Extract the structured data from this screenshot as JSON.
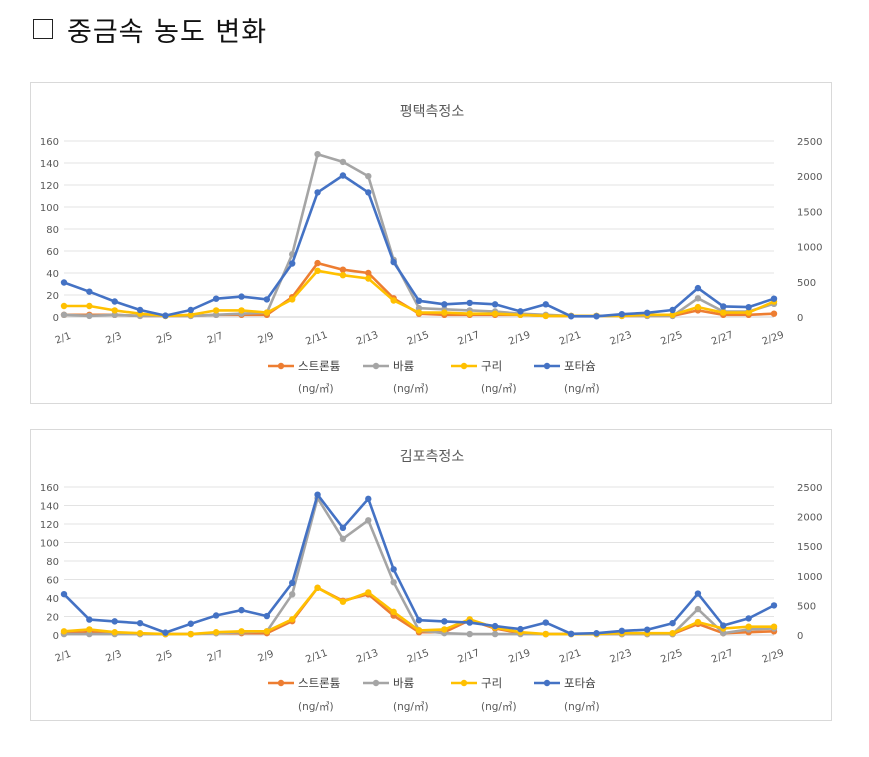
{
  "page": {
    "heading": "중금속 농도 변화"
  },
  "chart_data": [
    {
      "type": "line",
      "title": "평택측정소",
      "categories": [
        "2/1",
        "2/2",
        "2/3",
        "2/4",
        "2/5",
        "2/6",
        "2/7",
        "2/8",
        "2/9",
        "2/10",
        "2/11",
        "2/12",
        "2/13",
        "2/14",
        "2/15",
        "2/16",
        "2/17",
        "2/18",
        "2/19",
        "2/20",
        "2/21",
        "2/22",
        "2/23",
        "2/24",
        "2/25",
        "2/26",
        "2/27",
        "2/28",
        "2/29"
      ],
      "xticks": [
        "2/1",
        "2/3",
        "2/5",
        "2/7",
        "2/9",
        "2/11",
        "2/13",
        "2/15",
        "2/17",
        "2/19",
        "2/21",
        "2/23",
        "2/25",
        "2/27",
        "2/29"
      ],
      "y_left": {
        "range": [
          0,
          160
        ],
        "ticks": [
          "0",
          "20",
          "40",
          "60",
          "80",
          "100",
          "120",
          "140",
          "160"
        ]
      },
      "y_right": {
        "range": [
          0,
          2500
        ],
        "ticks": [
          "0",
          "500",
          "1000",
          "1500",
          "2000",
          "2500"
        ]
      },
      "grid": true,
      "legend_position": "bottom",
      "series": [
        {
          "name": "스트론튬",
          "unit": "(ng/㎥)",
          "axis": "left",
          "color": "#ED7D31",
          "values": [
            2,
            2,
            2,
            1,
            1,
            1,
            2,
            2,
            2,
            18,
            49,
            43,
            40,
            17,
            3,
            2,
            2,
            2,
            2,
            1,
            1,
            1,
            1,
            1,
            1,
            6,
            2,
            2,
            3
          ]
        },
        {
          "name": "바륨",
          "unit": "(ng/㎥)",
          "axis": "left",
          "color": "#A5A5A5",
          "values": [
            2,
            1,
            2,
            1,
            1,
            1,
            2,
            3,
            4,
            57,
            148,
            141,
            128,
            52,
            8,
            7,
            6,
            5,
            3,
            2,
            1,
            1,
            1,
            1,
            1,
            17,
            5,
            5,
            12
          ]
        },
        {
          "name": "구리",
          "unit": "(ng/㎥)",
          "axis": "left",
          "color": "#FFC000",
          "values": [
            10,
            10,
            6,
            3,
            1,
            2,
            6,
            6,
            4,
            16,
            42,
            38,
            35,
            15,
            4,
            4,
            3,
            3,
            2,
            1,
            1,
            1,
            1,
            2,
            2,
            9,
            4,
            4,
            14
          ]
        },
        {
          "name": "포타슘",
          "unit": "(ng/㎥)",
          "axis": "right",
          "color": "#4472C4",
          "values": [
            490,
            360,
            220,
            100,
            20,
            100,
            260,
            290,
            250,
            760,
            1770,
            2010,
            1770,
            780,
            230,
            180,
            200,
            180,
            80,
            180,
            10,
            10,
            40,
            60,
            100,
            410,
            150,
            140,
            260
          ]
        }
      ]
    },
    {
      "type": "line",
      "title": "김포측정소",
      "categories": [
        "2/1",
        "2/2",
        "2/3",
        "2/4",
        "2/5",
        "2/6",
        "2/7",
        "2/8",
        "2/9",
        "2/10",
        "2/11",
        "2/12",
        "2/13",
        "2/14",
        "2/15",
        "2/16",
        "2/17",
        "2/18",
        "2/19",
        "2/20",
        "2/21",
        "2/22",
        "2/23",
        "2/24",
        "2/25",
        "2/26",
        "2/27",
        "2/28",
        "2/29"
      ],
      "xticks": [
        "2/1",
        "2/3",
        "2/5",
        "2/7",
        "2/9",
        "2/11",
        "2/13",
        "2/15",
        "2/17",
        "2/19",
        "2/21",
        "2/23",
        "2/25",
        "2/27",
        "2/29"
      ],
      "y_left": {
        "range": [
          0,
          160
        ],
        "ticks": [
          "0",
          "20",
          "40",
          "60",
          "80",
          "100",
          "120",
          "140",
          "160"
        ]
      },
      "y_right": {
        "range": [
          0,
          2500
        ],
        "ticks": [
          "0",
          "500",
          "1000",
          "1500",
          "2000",
          "2500"
        ]
      },
      "grid": true,
      "legend_position": "bottom",
      "series": [
        {
          "name": "스트론튬",
          "unit": "(ng/㎥)",
          "axis": "left",
          "color": "#ED7D31",
          "values": [
            2,
            3,
            2,
            1,
            1,
            1,
            2,
            2,
            2,
            15,
            51,
            37,
            44,
            21,
            3,
            3,
            16,
            7,
            2,
            1,
            1,
            1,
            1,
            1,
            1,
            12,
            2,
            3,
            4
          ]
        },
        {
          "name": "바륨",
          "unit": "(ng/㎥)",
          "axis": "left",
          "color": "#A5A5A5",
          "values": [
            1,
            1,
            1,
            1,
            1,
            1,
            2,
            3,
            4,
            44,
            148,
            104,
            124,
            57,
            5,
            2,
            1,
            1,
            1,
            1,
            1,
            1,
            1,
            1,
            1,
            28,
            2,
            6,
            7
          ]
        },
        {
          "name": "구리",
          "unit": "(ng/㎥)",
          "axis": "left",
          "color": "#FFC000",
          "values": [
            4,
            6,
            3,
            2,
            1,
            1,
            3,
            4,
            4,
            17,
            51,
            36,
            46,
            25,
            5,
            6,
            17,
            8,
            3,
            1,
            1,
            1,
            2,
            2,
            2,
            14,
            7,
            9,
            9
          ]
        },
        {
          "name": "포타슘",
          "unit": "(ng/㎥)",
          "axis": "right",
          "color": "#4472C4",
          "values": [
            690,
            260,
            230,
            200,
            40,
            190,
            330,
            420,
            320,
            880,
            2370,
            1810,
            2300,
            1110,
            250,
            230,
            210,
            150,
            100,
            210,
            20,
            30,
            70,
            90,
            200,
            700,
            160,
            280,
            500
          ]
        }
      ]
    }
  ]
}
